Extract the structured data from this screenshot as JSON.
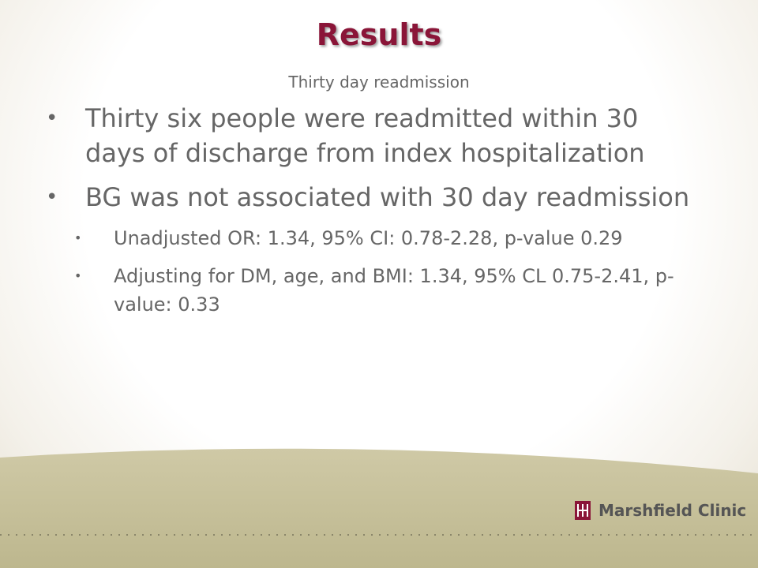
{
  "header": {
    "title": "Results",
    "subtitle": "Thirty day readmission"
  },
  "bullets": [
    {
      "text": "Thirty six people were readmitted within 30 days of discharge from index hospitalization",
      "sub": []
    },
    {
      "text": "BG was not associated with 30 day readmission",
      "sub": [
        "Unadjusted OR: 1.34, 95% CI: 0.78-2.28, p-value 0.29",
        "Adjusting for DM, age, and BMI: 1.34, 95% CL 0.75-2.41, p-value: 0.33"
      ]
    }
  ],
  "footer": {
    "logo": "Marshfield Clinic"
  }
}
